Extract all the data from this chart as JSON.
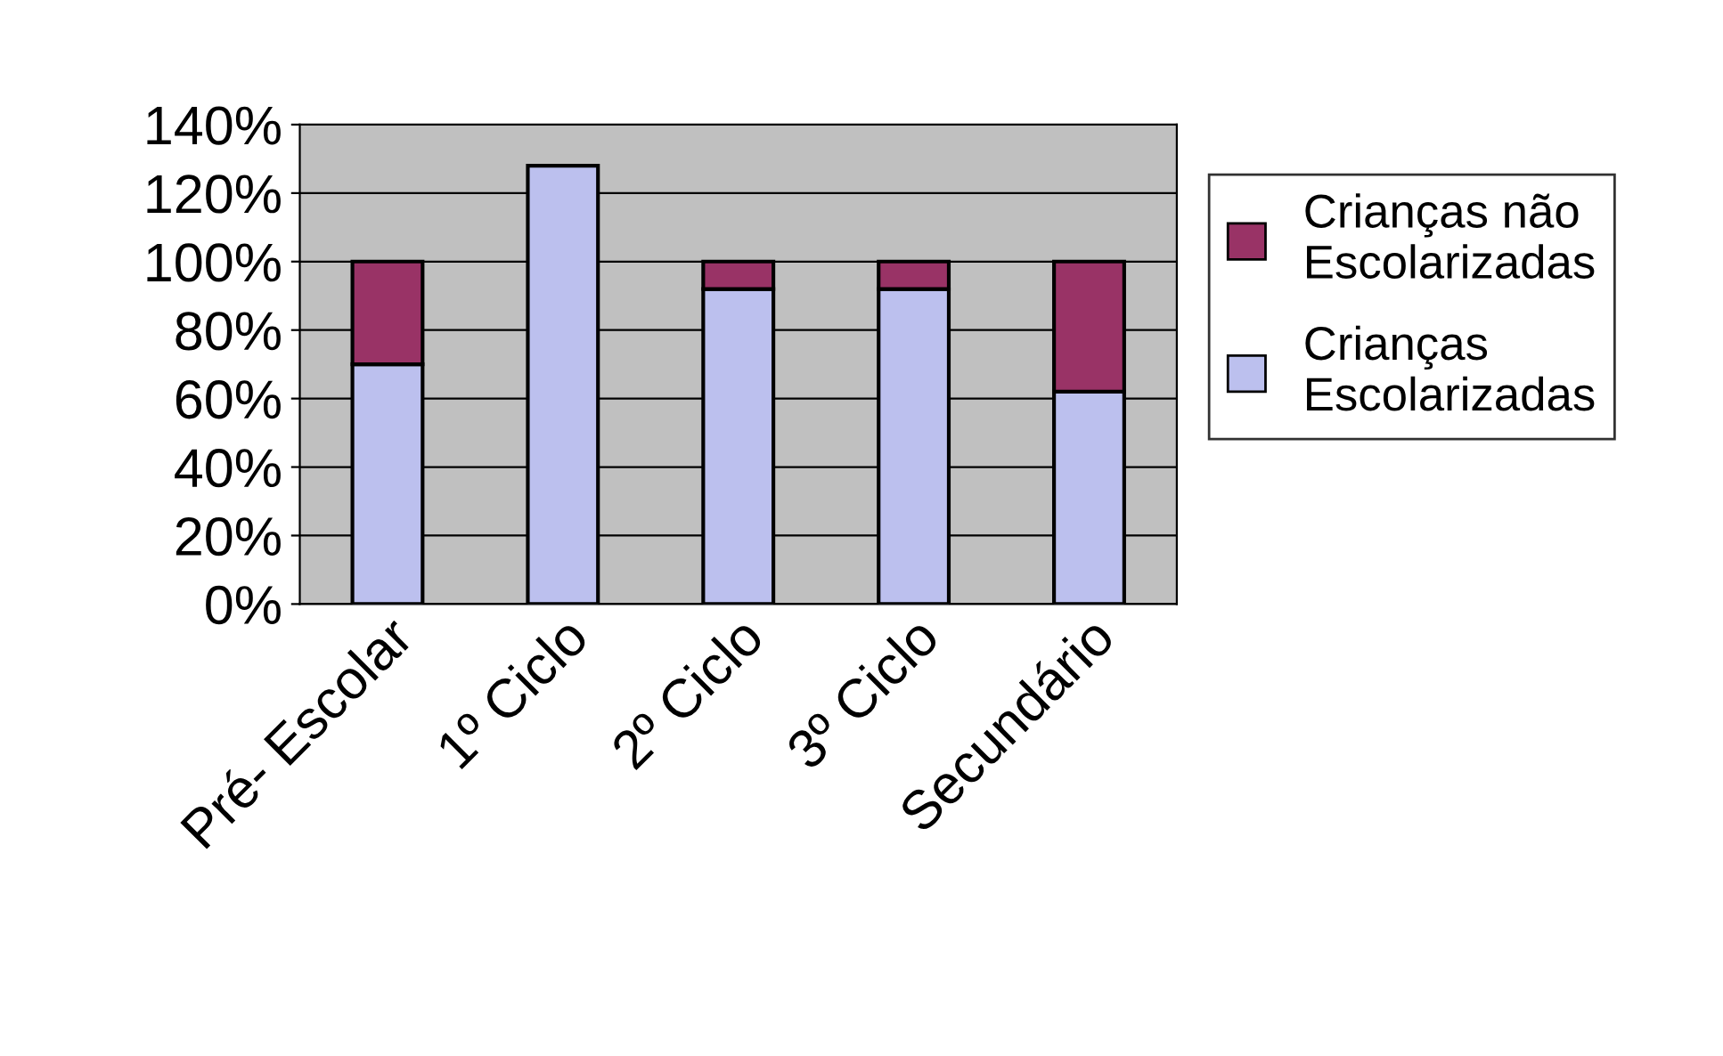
{
  "chart_data": {
    "type": "bar",
    "stacked": true,
    "categories": [
      "Pré- Escolar",
      "1º Ciclo",
      "2º Ciclo",
      "3º Ciclo",
      "Secundário"
    ],
    "series": [
      {
        "name": "Crianças\nEscolarizadas",
        "color": "#bcc0ee",
        "values": [
          70,
          128,
          92,
          92,
          62
        ]
      },
      {
        "name": "Crianças não\nEscolarizadas",
        "color": "#993366",
        "values": [
          30,
          null,
          8,
          8,
          38
        ]
      }
    ],
    "ylim": [
      0,
      140
    ],
    "yticks": [
      {
        "value": 0,
        "label": "0%"
      },
      {
        "value": 20,
        "label": "20%"
      },
      {
        "value": 40,
        "label": "40%"
      },
      {
        "value": 60,
        "label": "60%"
      },
      {
        "value": 80,
        "label": "80%"
      },
      {
        "value": 100,
        "label": "100%"
      },
      {
        "value": 120,
        "label": "120%"
      },
      {
        "value": 140,
        "label": "140%"
      }
    ],
    "grid": "y",
    "legend": "right"
  }
}
